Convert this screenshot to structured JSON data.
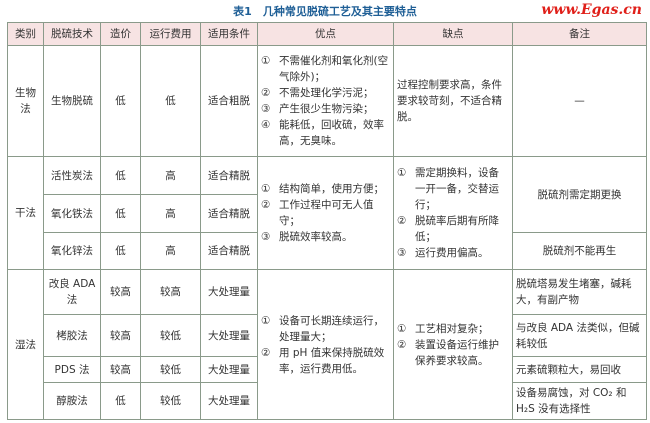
{
  "title": "表1　几种常见脱硫工艺及其主要特点",
  "watermark": "www.Egas.cn",
  "headers": [
    "类别",
    "脱硫技术",
    "造价",
    "运行费用",
    "适用条件",
    "优点",
    "缺点",
    "备注"
  ],
  "groups": {
    "bio": {
      "category": "生物法",
      "rows": [
        {
          "tech": "生物脱硫",
          "cost": "低",
          "run": "低",
          "cond": "适合粗脱"
        }
      ],
      "pros": [
        "①",
        "不需催化剂和氧化剂(空气除外)；",
        "②",
        "不需处理化学污泥；",
        "③",
        "产生很少生物污染；",
        "④",
        "能耗低，回收硫，效率高，无臭味。"
      ],
      "cons": "过程控制要求高，条件要求较苛刻，不适合精脱。",
      "note": "—"
    },
    "dry": {
      "category": "干法",
      "rows": [
        {
          "tech": "活性炭法",
          "cost": "低",
          "run": "高",
          "cond": "适合精脱"
        },
        {
          "tech": "氧化铁法",
          "cost": "低",
          "run": "高",
          "cond": "适合精脱"
        },
        {
          "tech": "氧化锌法",
          "cost": "低",
          "run": "高",
          "cond": "适合精脱"
        }
      ],
      "pros": [
        "①",
        "结构简单，使用方便；",
        "②",
        "工作过程中可无人值守；",
        "③",
        "脱硫效率较高。"
      ],
      "cons": [
        "①",
        "需定期换料，设备一开一备，交替运行；",
        "②",
        "脱硫率后期有所降低；",
        "③",
        "运行费用偏高。"
      ],
      "notes": [
        "脱硫剂需定期更换",
        "脱硫剂不能再生"
      ]
    },
    "wet": {
      "category": "湿法",
      "rows": [
        {
          "tech": "改良 ADA 法",
          "cost": "较高",
          "run": "较高",
          "cond": "大处理量",
          "note": "脱硫塔易发生堵塞，碱耗大，有副产物"
        },
        {
          "tech": "栲胶法",
          "cost": "较高",
          "run": "较低",
          "cond": "大处理量",
          "note": "与改良 ADA 法类似，但碱耗较低"
        },
        {
          "tech": "PDS 法",
          "cost": "较高",
          "run": "较低",
          "cond": "大处理量",
          "note": "元素硫颗粒大，易回收"
        },
        {
          "tech": "醇胺法",
          "cost": "低",
          "run": "较低",
          "cond": "大处理量",
          "note": "设备易腐蚀，对 CO₂ 和 H₂S 没有选择性"
        }
      ],
      "pros": [
        "①",
        "设备可长期连续运行，处理量大；",
        "②",
        "用 pH 值来保持脱硫效率，运行费用低。"
      ],
      "cons": [
        "①",
        "工艺相对复杂；",
        "②",
        "装置设备运行维护保养要求较高。"
      ]
    }
  }
}
